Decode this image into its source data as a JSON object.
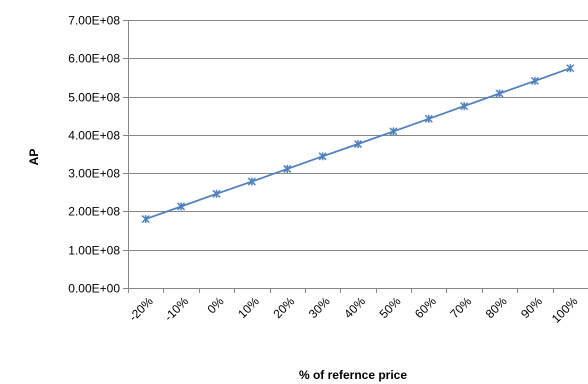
{
  "chart_data": {
    "type": "line",
    "title": "",
    "xlabel": "% of refernce price",
    "ylabel": "AP",
    "categories": [
      "-20%",
      "-10%",
      "0%",
      "10%",
      "20%",
      "30%",
      "40%",
      "50%",
      "60%",
      "70%",
      "80%",
      "90%",
      "100%"
    ],
    "series": [
      {
        "name": "",
        "color": "#4f81bd",
        "marker": "asterisk",
        "values": [
          180000000,
          213000000,
          246000000,
          278000000,
          311000000,
          344000000,
          376000000,
          409000000,
          442000000,
          475000000,
          508000000,
          541000000,
          574000000
        ]
      }
    ],
    "yticks": [
      "0.00E+00",
      "1.00E+08",
      "2.00E+08",
      "3.00E+08",
      "4.00E+08",
      "5.00E+08",
      "6.00E+08",
      "7.00E+08"
    ],
    "ylim": [
      0,
      700000000
    ],
    "grid": true,
    "legend": "none",
    "colors": {
      "gridline": "#868686",
      "axis": "#868686",
      "series": "#4f81bd"
    }
  }
}
